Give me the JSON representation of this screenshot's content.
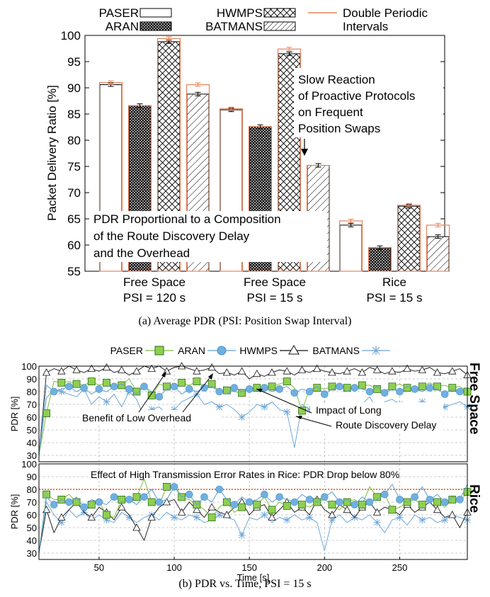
{
  "figure_a": {
    "caption": "(a) Average PDR (PSI: Position Swap Interval)",
    "legend": [
      "PASER",
      "ARAN",
      "HWMPS",
      "BATMANS",
      "Double Periodic",
      "Intervals"
    ],
    "annotation_slow": [
      "Slow Reaction",
      "of Proactive Protocols",
      "on Frequent",
      "Position Swaps"
    ],
    "annotation_pdr": [
      "PDR Proportional to a Composition",
      "of the Route Discovery Delay",
      "and the Overhead"
    ]
  },
  "figure_b": {
    "caption": "(b) PDR vs. Time, PSI = 15 s",
    "legend": [
      "PASER",
      "ARAN",
      "HWMPS",
      "BATMANS"
    ],
    "side_label_top": "Free Space",
    "side_label_bottom": "Rice",
    "annotation_benefit": "Benefit of Low Overhead",
    "annotation_impact": [
      "Impact of Long",
      "Route Discovery Delay"
    ],
    "annotation_rice": "Effect of High Transmission Error Rates in Rice: PDR Drop below 80%"
  },
  "chart_data": [
    {
      "type": "bar",
      "ylabel": "Packet Delivery Ratio [%]",
      "xlabel": "",
      "ylim": [
        55,
        100
      ],
      "yticks": [
        55,
        60,
        65,
        70,
        75,
        80,
        85,
        90,
        95,
        100
      ],
      "categories": [
        [
          "Free Space",
          "PSI = 120 s"
        ],
        [
          "Free Space",
          "PSI = 15 s"
        ],
        [
          "Rice",
          "PSI = 15 s"
        ]
      ],
      "series": [
        {
          "name": "PASER",
          "values": [
            90.6,
            85.8,
            63.8
          ],
          "double_periodic": [
            91.0,
            86.0,
            64.6
          ],
          "color": "#ffffff",
          "pattern": "none"
        },
        {
          "name": "ARAN",
          "values": [
            86.6,
            82.6,
            59.5
          ],
          "double_periodic": [
            86.6,
            82.6,
            59.5
          ],
          "color": "#000000",
          "pattern": "dense-cross"
        },
        {
          "name": "HWMPS",
          "values": [
            98.8,
            96.5,
            67.4
          ],
          "double_periodic": [
            99.4,
            97.4,
            67.6
          ],
          "color": "#000000",
          "pattern": "cross"
        },
        {
          "name": "BATMANS",
          "values": [
            88.8,
            75.2,
            61.6
          ],
          "double_periodic": [
            90.6,
            75.2,
            63.8
          ],
          "color": "#000000",
          "pattern": "diagonal"
        }
      ],
      "overlay_color": "#e8825a",
      "grid": false
    },
    {
      "type": "line",
      "panel": "Free Space",
      "ylabel": "PDR [%]",
      "ylim": [
        25,
        100
      ],
      "yticks": [
        30,
        40,
        50,
        60,
        70,
        80,
        90,
        100
      ],
      "xlim": [
        10,
        295
      ],
      "grid": true,
      "x": [
        10,
        15,
        20,
        25,
        30,
        35,
        40,
        45,
        50,
        55,
        60,
        65,
        70,
        75,
        80,
        85,
        90,
        95,
        100,
        105,
        110,
        115,
        120,
        125,
        130,
        135,
        140,
        145,
        150,
        155,
        160,
        165,
        170,
        175,
        180,
        185,
        190,
        195,
        200,
        205,
        210,
        215,
        220,
        225,
        230,
        235,
        240,
        245,
        250,
        255,
        260,
        265,
        270,
        275,
        280,
        285,
        290,
        295
      ],
      "series": [
        {
          "name": "PASER",
          "color": "#7fbf3f",
          "values": [
            30,
            63,
            88,
            87,
            88,
            86,
            85,
            88,
            85,
            87,
            84,
            85,
            90,
            80,
            85,
            77,
            86,
            84,
            82,
            87,
            85,
            88,
            84,
            86,
            80,
            81,
            80,
            79,
            82,
            83,
            82,
            84,
            86,
            88,
            83,
            65,
            82,
            83,
            82,
            84,
            85,
            83,
            84,
            85,
            85,
            82,
            80,
            84,
            86,
            83,
            81,
            84,
            87,
            84,
            85,
            83,
            84,
            80
          ]
        },
        {
          "name": "ARAN",
          "color": "#5f9fd0",
          "values": [
            30,
            85,
            80,
            82,
            84,
            80,
            83,
            78,
            82,
            80,
            84,
            86,
            82,
            78,
            84,
            80,
            76,
            82,
            84,
            78,
            82,
            80,
            83,
            84,
            80,
            78,
            83,
            80,
            82,
            81,
            83,
            80,
            82,
            84,
            79,
            82,
            80,
            84,
            78,
            82,
            84,
            80,
            83,
            82,
            80,
            84,
            79,
            82,
            80,
            84,
            82,
            80,
            83,
            82,
            78,
            82,
            80,
            83
          ]
        },
        {
          "name": "HWMPS",
          "color": "#111111",
          "values": [
            30,
            95,
            98,
            96,
            100,
            97,
            95,
            98,
            96,
            99,
            95,
            97,
            93,
            96,
            100,
            98,
            100,
            96,
            99,
            100,
            98,
            96,
            97,
            99,
            94,
            95,
            93,
            96,
            90,
            94,
            92,
            95,
            97,
            96,
            93,
            97,
            95,
            98,
            96,
            95,
            94,
            96,
            98,
            95,
            99,
            97,
            94,
            96,
            95,
            98,
            96,
            97,
            99,
            95,
            94,
            96,
            98,
            93
          ]
        },
        {
          "name": "BATMANS",
          "color": "#6fa8d8",
          "values": [
            30,
            75,
            82,
            80,
            78,
            76,
            82,
            70,
            76,
            72,
            78,
            68,
            80,
            74,
            60,
            66,
            68,
            62,
            66,
            72,
            75,
            78,
            70,
            72,
            68,
            70,
            66,
            60,
            64,
            70,
            68,
            72,
            66,
            64,
            36,
            70,
            66,
            68,
            72,
            66,
            70,
            64,
            68,
            70,
            76,
            66,
            72,
            74,
            70,
            62,
            68,
            72,
            70,
            66,
            68,
            70,
            72,
            68
          ]
        }
      ]
    },
    {
      "type": "line",
      "panel": "Rice",
      "xlabel": "Time [s]",
      "ylabel": "PDR [%]",
      "ylim": [
        25,
        100
      ],
      "yticks": [
        30,
        40,
        50,
        60,
        70,
        80,
        90,
        100
      ],
      "xticks": [
        50,
        100,
        150,
        200,
        250
      ],
      "xlim": [
        10,
        295
      ],
      "grid": true,
      "threshold": 80,
      "x": [
        10,
        15,
        20,
        25,
        30,
        35,
        40,
        45,
        50,
        55,
        60,
        65,
        70,
        75,
        80,
        85,
        90,
        95,
        100,
        105,
        110,
        115,
        120,
        125,
        130,
        135,
        140,
        145,
        150,
        155,
        160,
        165,
        170,
        175,
        180,
        185,
        190,
        195,
        200,
        205,
        210,
        215,
        220,
        225,
        230,
        235,
        240,
        245,
        250,
        255,
        260,
        265,
        270,
        275,
        280,
        285,
        290,
        295
      ],
      "series": [
        {
          "name": "PASER",
          "color": "#7fbf3f",
          "values": [
            30,
            76,
            72,
            72,
            76,
            70,
            63,
            68,
            70,
            60,
            58,
            72,
            70,
            74,
            88,
            70,
            68,
            82,
            84,
            74,
            72,
            68,
            64,
            58,
            66,
            70,
            62,
            66,
            70,
            68,
            74,
            64,
            70,
            67,
            72,
            68,
            66,
            70,
            72,
            68,
            64,
            70,
            72,
            68,
            82,
            74,
            76,
            64,
            66,
            70,
            72,
            68,
            74,
            70,
            66,
            72,
            70,
            78
          ]
        },
        {
          "name": "ARAN",
          "color": "#5f9fd0",
          "values": [
            30,
            74,
            68,
            72,
            70,
            74,
            66,
            72,
            70,
            68,
            74,
            70,
            72,
            68,
            74,
            80,
            70,
            72,
            82,
            74,
            76,
            68,
            74,
            70,
            80,
            72,
            68,
            74,
            70,
            72,
            76,
            70,
            74,
            72,
            70,
            76,
            72,
            70,
            74,
            78,
            70,
            72,
            68,
            74,
            70,
            72,
            76,
            84,
            72,
            70,
            74,
            82,
            72,
            76,
            70,
            74,
            72,
            84
          ]
        },
        {
          "name": "HWMPS",
          "color": "#111111",
          "values": [
            30,
            64,
            46,
            58,
            64,
            70,
            62,
            58,
            66,
            62,
            56,
            66,
            60,
            50,
            40,
            58,
            66,
            70,
            72,
            62,
            70,
            64,
            58,
            66,
            62,
            60,
            66,
            70,
            60,
            66,
            68,
            58,
            64,
            70,
            62,
            66,
            60,
            72,
            64,
            60,
            68,
            64,
            58,
            66,
            70,
            62,
            66,
            64,
            60,
            68,
            62,
            66,
            70,
            64,
            58,
            60,
            50,
            62
          ]
        },
        {
          "name": "BATMANS",
          "color": "#6fa8d8",
          "values": [
            30,
            70,
            60,
            54,
            64,
            58,
            62,
            56,
            60,
            56,
            54,
            62,
            58,
            54,
            58,
            60,
            56,
            62,
            58,
            56,
            60,
            58,
            54,
            56,
            60,
            58,
            56,
            44,
            58,
            56,
            60,
            54,
            58,
            56,
            60,
            56,
            58,
            54,
            32,
            56,
            60,
            54,
            58,
            56,
            60,
            54,
            46,
            56,
            58,
            52,
            60,
            56,
            58,
            54,
            56,
            60,
            58,
            56
          ]
        }
      ]
    }
  ]
}
